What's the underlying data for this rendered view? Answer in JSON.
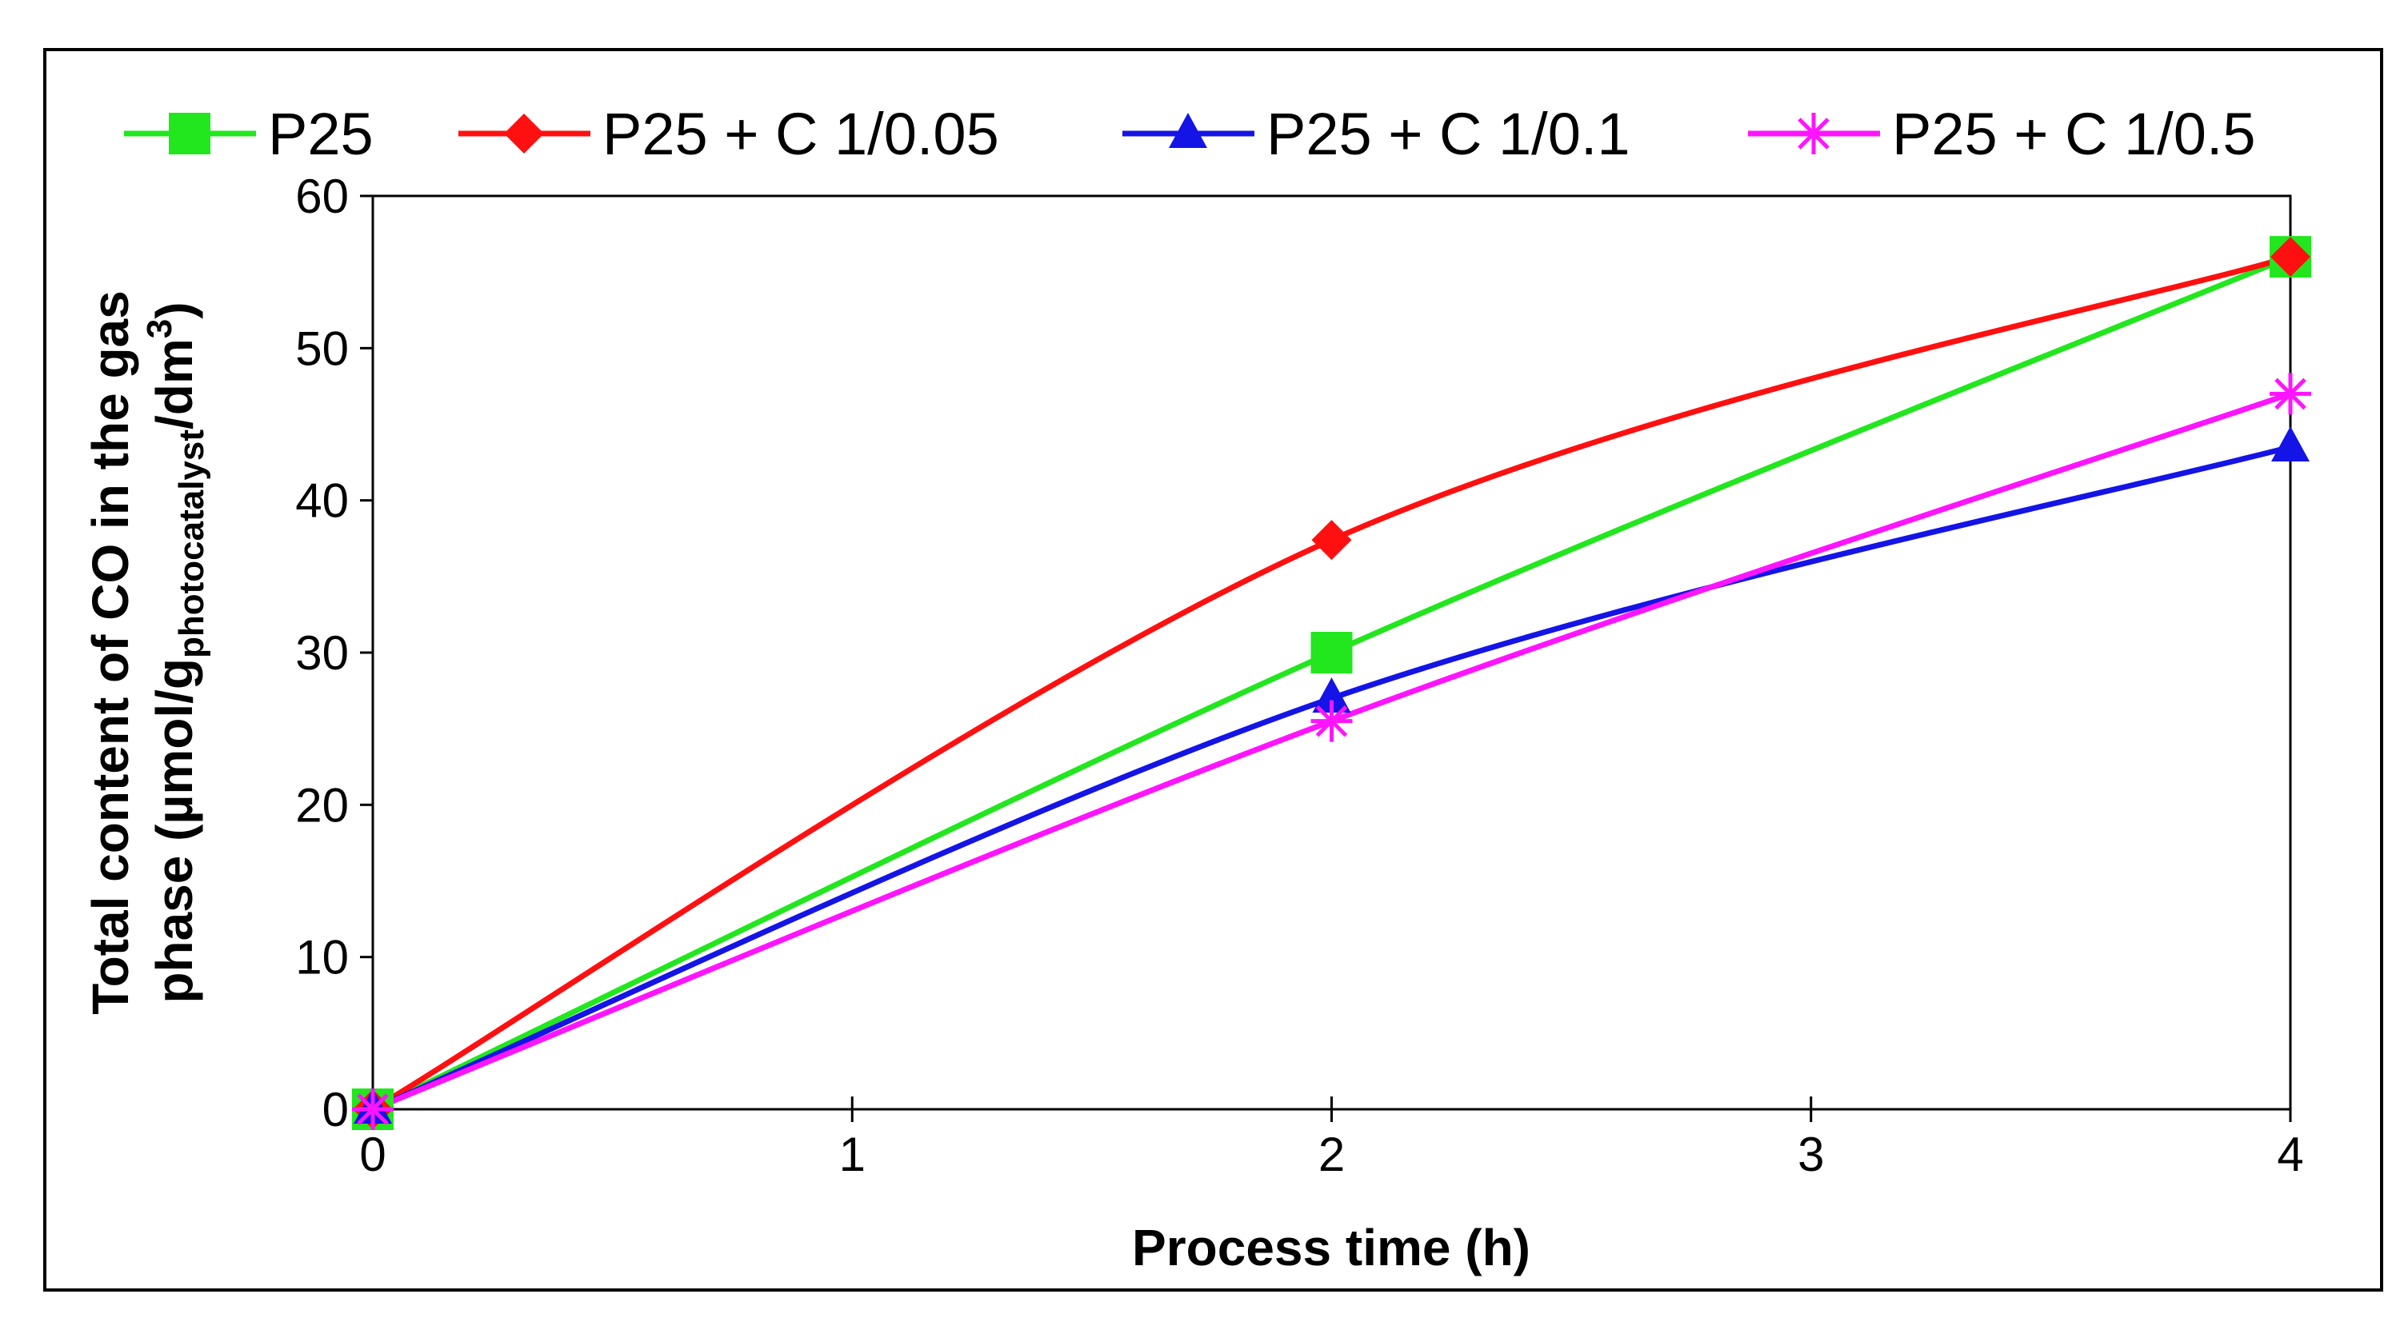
{
  "chart_data": {
    "type": "line",
    "title": "",
    "xlabel": "Process time (h)",
    "ylabel": {
      "line1": "Total content of CO in the gas",
      "line2_prefix": "phase (µmol/g",
      "line2_sub": "photocatalyst",
      "line2_mid": "/dm",
      "line2_sup": "3",
      "line2_suffix": ")"
    },
    "x": [
      0,
      2,
      4
    ],
    "xlim": [
      0,
      4
    ],
    "ylim": [
      0,
      60
    ],
    "xticks": [
      0,
      1,
      2,
      3,
      4
    ],
    "yticks": [
      0,
      10,
      20,
      30,
      40,
      50,
      60
    ],
    "xtick_labels": [
      "0",
      "1",
      "2",
      "3",
      "4"
    ],
    "ytick_labels": [
      "0",
      "10",
      "20",
      "30",
      "40",
      "50",
      "60"
    ],
    "grid": false,
    "legend_position": "top",
    "series": [
      {
        "name": "P25",
        "values": [
          0,
          30,
          56
        ],
        "color": "#22e61e",
        "marker": "square"
      },
      {
        "name": "P25 + C 1/0.05",
        "values": [
          0,
          37.4,
          56
        ],
        "color": "#ff1010",
        "marker": "diamond"
      },
      {
        "name": "P25 + C 1/0.1",
        "values": [
          0,
          27,
          43.5
        ],
        "color": "#1414e6",
        "marker": "triangle"
      },
      {
        "name": "P25 + C 1/0.5",
        "values": [
          0,
          25.5,
          47
        ],
        "color": "#ff14ff",
        "marker": "asterisk"
      }
    ]
  }
}
